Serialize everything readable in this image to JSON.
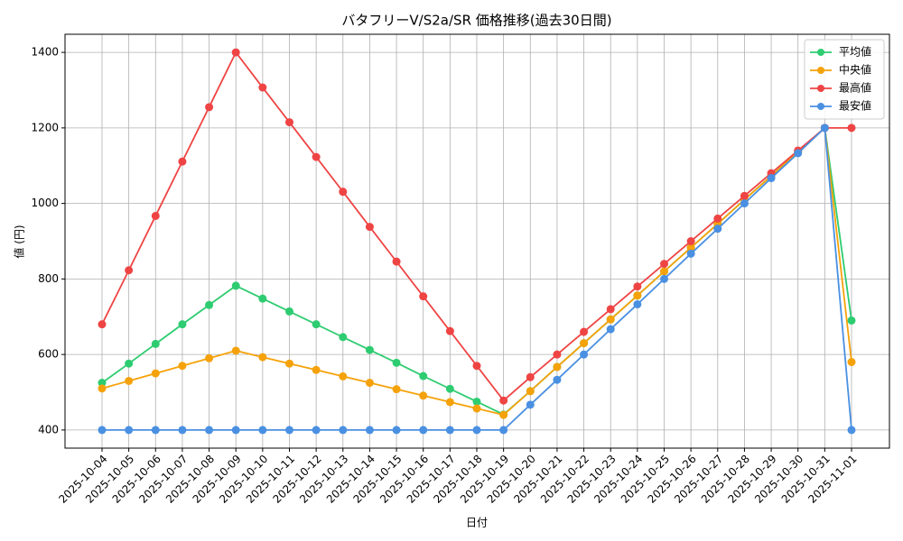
{
  "chart_data": {
    "type": "line",
    "title": "バタフリーV/S2a/SR 価格推移(過去30日間)",
    "x_label": "日付",
    "y_label": "値 (円)",
    "categories": [
      "2025-10-04",
      "2025-10-05",
      "2025-10-06",
      "2025-10-07",
      "2025-10-08",
      "2025-10-09",
      "2025-10-10",
      "2025-10-11",
      "2025-10-12",
      "2025-10-13",
      "2025-10-14",
      "2025-10-15",
      "2025-10-16",
      "2025-10-17",
      "2025-10-18",
      "2025-10-19",
      "2025-10-20",
      "2025-10-21",
      "2025-10-22",
      "2025-10-23",
      "2025-10-24",
      "2025-10-25",
      "2025-10-26",
      "2025-10-27",
      "2025-10-28",
      "2025-10-29",
      "2025-10-30",
      "2025-10-31",
      "2025-11-01"
    ],
    "series": [
      {
        "name": "平均値",
        "color": "#2ecc71",
        "values": [
          525,
          576,
          628,
          680,
          731,
          782,
          748,
          714,
          680,
          646,
          612,
          578,
          543,
          509,
          475,
          441,
          503,
          567,
          630,
          693,
          756,
          820,
          883,
          946,
          1010,
          1073,
          1137,
          1200,
          690
        ]
      },
      {
        "name": "中央値",
        "color": "#f5a20a",
        "values": [
          510,
          530,
          550,
          570,
          590,
          610,
          593,
          576,
          559,
          542,
          525,
          508,
          491,
          474,
          457,
          440,
          503,
          567,
          630,
          693,
          756,
          820,
          883,
          946,
          1010,
          1073,
          1137,
          1200,
          580
        ]
      },
      {
        "name": "最高値",
        "color": "#ef4444",
        "values": [
          680,
          823,
          967,
          1111,
          1255,
          1400,
          1307,
          1215,
          1123,
          1031,
          938,
          846,
          754,
          662,
          570,
          478,
          540,
          600,
          660,
          720,
          780,
          840,
          900,
          960,
          1020,
          1080,
          1140,
          1200,
          1200
        ]
      },
      {
        "name": "最安値",
        "color": "#4a90e2",
        "values": [
          400,
          400,
          400,
          400,
          400,
          400,
          400,
          400,
          400,
          400,
          400,
          400,
          400,
          400,
          400,
          400,
          467,
          533,
          600,
          667,
          733,
          800,
          867,
          933,
          1000,
          1067,
          1133,
          1200,
          400
        ]
      }
    ],
    "ylim": [
      352,
      1448
    ],
    "yticks": [
      400,
      600,
      800,
      1000,
      1200,
      1400
    ],
    "grid": true,
    "legend": "upper-right"
  }
}
